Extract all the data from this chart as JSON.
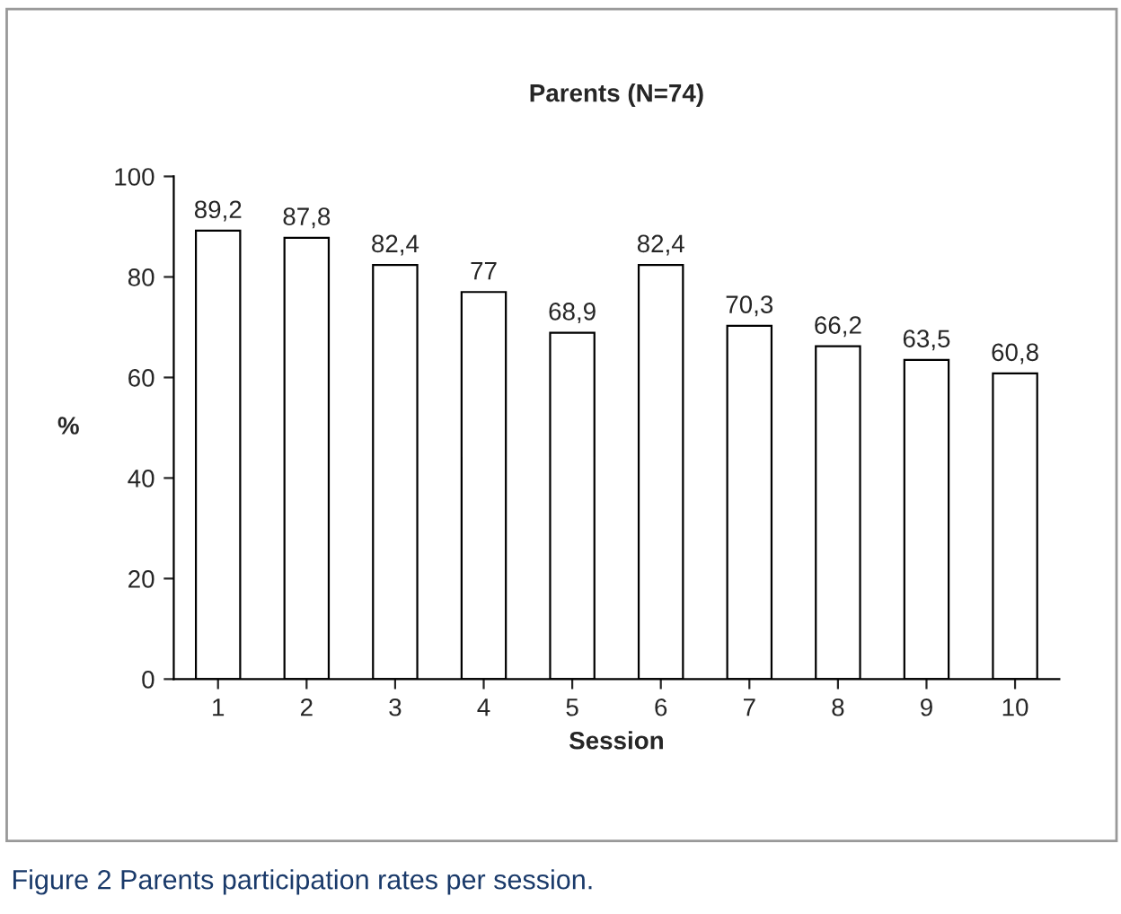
{
  "chart_data": {
    "type": "bar",
    "title": "Parents (N=74)",
    "xlabel": "Session",
    "ylabel": "%",
    "categories": [
      "1",
      "2",
      "3",
      "4",
      "5",
      "6",
      "7",
      "8",
      "9",
      "10"
    ],
    "values": [
      89.2,
      87.8,
      82.4,
      77,
      68.9,
      82.4,
      70.3,
      66.2,
      63.5,
      60.8
    ],
    "value_labels": [
      "89,2",
      "87,8",
      "82,4",
      "77",
      "68,9",
      "82,4",
      "70,3",
      "66,2",
      "63,5",
      "60,8"
    ],
    "color": "#ffffff",
    "ylim": [
      0,
      100
    ],
    "yticks": [
      0,
      20,
      40,
      60,
      80,
      100
    ],
    "grid": false,
    "legend": false,
    "annotations": [
      "Figure 2 Parents participation rates per session."
    ]
  }
}
